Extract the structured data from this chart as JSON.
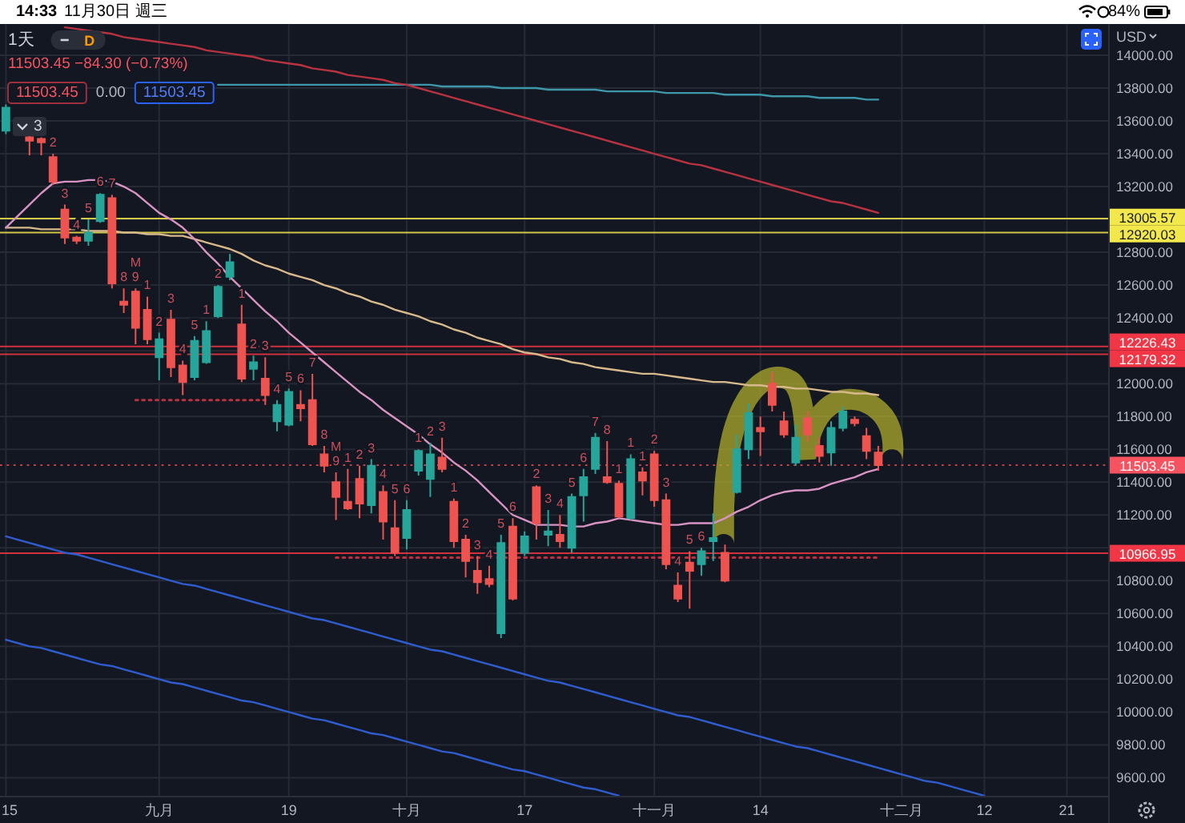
{
  "chart_data": {
    "type": "candlestick",
    "title": "1天",
    "subtitle": "11503.45 −84.30 (−0.73%)",
    "categories": [
      "15",
      null,
      null,
      null,
      null,
      null,
      null,
      null,
      null,
      null,
      null,
      null,
      null,
      "九月",
      null,
      null,
      null,
      null,
      null,
      null,
      null,
      null,
      null,
      null,
      "19",
      null,
      null,
      null,
      null,
      null,
      null,
      null,
      null,
      null,
      "十月",
      null,
      null,
      null,
      null,
      null,
      null,
      null,
      null,
      null,
      "17",
      null,
      null,
      null,
      null,
      null,
      null,
      null,
      null,
      null,
      null,
      "十一月",
      null,
      null,
      null,
      null,
      null,
      null,
      null,
      null,
      "14",
      null,
      null,
      null,
      null,
      null,
      null,
      null,
      null,
      null,
      null,
      null,
      "十二月",
      null,
      null,
      null,
      null,
      null,
      null,
      "12",
      null,
      null,
      null,
      null,
      null,
      null,
      "21",
      null,
      null,
      null
    ],
    "ohlc": [
      [
        13540,
        13700,
        13520,
        13680
      ],
      null,
      [
        13500,
        13510,
        13390,
        13480
      ],
      [
        13490,
        13500,
        13390,
        13470
      ],
      [
        13380,
        13400,
        13210,
        13230
      ],
      [
        13060,
        13090,
        12850,
        12890
      ],
      [
        12890,
        12900,
        12850,
        12870
      ],
      [
        12870,
        13000,
        12840,
        12920
      ],
      [
        12990,
        13160,
        12980,
        13150
      ],
      [
        13130,
        13150,
        12580,
        12610
      ],
      [
        12500,
        12580,
        12430,
        12480
      ],
      [
        12560,
        12580,
        12240,
        12340
      ],
      [
        12450,
        12530,
        12240,
        12270
      ],
      [
        12160,
        12310,
        12020,
        12270
      ],
      [
        12390,
        12450,
        12040,
        12100
      ],
      [
        12110,
        12140,
        11930,
        12010
      ],
      [
        12040,
        12290,
        12020,
        12260
      ],
      [
        12130,
        12380,
        12120,
        12320
      ],
      [
        12410,
        12600,
        12400,
        12590
      ],
      [
        12650,
        12790,
        12630,
        12740
      ],
      [
        12360,
        12480,
        12010,
        12030
      ],
      [
        12090,
        12170,
        12020,
        12130
      ],
      [
        12030,
        12160,
        11870,
        11930
      ],
      [
        11770,
        11900,
        11710,
        11870
      ],
      [
        11750,
        11970,
        11740,
        11950
      ],
      [
        11870,
        11960,
        11770,
        11850
      ],
      [
        11900,
        12060,
        11620,
        11630
      ],
      [
        11570,
        11620,
        11460,
        11500
      ],
      [
        11400,
        11460,
        11170,
        11310
      ],
      [
        11280,
        11480,
        11230,
        11240
      ],
      [
        11420,
        11500,
        11180,
        11270
      ],
      [
        11260,
        11540,
        11210,
        11500
      ],
      [
        11340,
        11380,
        11050,
        11160
      ],
      [
        11120,
        11290,
        10950,
        10970
      ],
      [
        11060,
        11290,
        10990,
        11230
      ],
      [
        11470,
        11600,
        11440,
        11590
      ],
      [
        11420,
        11640,
        11310,
        11570
      ],
      [
        11550,
        11670,
        11460,
        11480
      ],
      [
        11280,
        11300,
        11000,
        11040
      ],
      [
        11050,
        11080,
        10820,
        10920
      ],
      [
        10860,
        10950,
        10720,
        10790
      ],
      [
        10810,
        10890,
        10760,
        10780
      ],
      [
        10480,
        11080,
        10450,
        11030
      ],
      [
        11130,
        11180,
        10680,
        10690
      ],
      [
        10970,
        11100,
        10950,
        11070
      ],
      [
        11370,
        11380,
        11050,
        11150
      ],
      [
        11080,
        11230,
        11010,
        11100
      ],
      [
        11080,
        11200,
        11000,
        11040
      ],
      [
        11000,
        11330,
        10970,
        11310
      ],
      [
        11320,
        11480,
        11160,
        11430
      ],
      [
        11480,
        11700,
        11450,
        11670
      ],
      [
        11430,
        11650,
        11390,
        11400
      ],
      [
        11390,
        11410,
        11180,
        11190
      ],
      [
        11180,
        11570,
        11170,
        11540
      ],
      [
        11460,
        11490,
        11320,
        11410
      ],
      [
        11570,
        11590,
        11250,
        11290
      ],
      [
        11290,
        11330,
        10870,
        10900
      ],
      [
        10770,
        10850,
        10670,
        10690
      ],
      [
        10910,
        10980,
        10630,
        10860
      ],
      [
        10900,
        11000,
        10830,
        10980
      ],
      [
        11040,
        11210,
        10920,
        11060
      ],
      [
        10970,
        11020,
        10790,
        10800
      ],
      [
        11340,
        11690,
        11330,
        11600
      ],
      [
        11600,
        11880,
        11540,
        11820
      ],
      [
        11730,
        11800,
        11560,
        11710
      ],
      [
        12000,
        12070,
        11830,
        11870
      ],
      [
        11770,
        11830,
        11670,
        11690
      ],
      [
        11520,
        11750,
        11500,
        11670
      ],
      [
        11790,
        11830,
        11650,
        11690
      ],
      [
        11620,
        11670,
        11520,
        11560
      ],
      [
        11580,
        11770,
        11500,
        11730
      ],
      [
        11730,
        11860,
        11710,
        11830
      ],
      [
        11780,
        11800,
        11740,
        11760
      ],
      [
        11680,
        11730,
        11540,
        11590
      ],
      [
        11580,
        11620,
        11470,
        11503.45
      ],
      null,
      null,
      null,
      null,
      null,
      null,
      null,
      null,
      null,
      null,
      null,
      null,
      null,
      null,
      null,
      null,
      null,
      null,
      null
    ],
    "colors": [
      "#26a69a",
      null,
      "#ef5350",
      "#ef5350",
      "#ef5350",
      "#ef5350",
      "#ef5350",
      "#26a69a",
      "#26a69a",
      "#ef5350",
      "#ef5350",
      "#ef5350",
      "#ef5350",
      "#26a69a",
      "#ef5350",
      "#ef5350",
      "#26a69a",
      "#26a69a",
      "#26a69a",
      "#26a69a",
      "#ef5350",
      "#26a69a",
      "#ef5350",
      "#26a69a",
      "#26a69a",
      "#ef5350",
      "#ef5350",
      "#ef5350",
      "#ef5350",
      "#ef5350",
      "#ef5350",
      "#26a69a",
      "#ef5350",
      "#ef5350",
      "#26a69a",
      "#26a69a",
      "#26a69a",
      "#ef5350",
      "#ef5350",
      "#ef5350",
      "#ef5350",
      "#ef5350",
      "#26a69a",
      "#ef5350",
      "#26a69a",
      "#ef5350",
      "#26a69a",
      "#ef5350",
      "#26a69a",
      "#26a69a",
      "#26a69a",
      "#ef5350",
      "#ef5350",
      "#26a69a",
      "#ef5350",
      "#ef5350",
      "#ef5350",
      "#ef5350",
      "#ef5350",
      "#26a69a",
      "#26a69a",
      "#ef5350",
      "#26a69a",
      "#26a69a",
      "#ef5350",
      "#ef5350",
      "#ef5350",
      "#26a69a",
      "#ef5350",
      "#ef5350",
      "#26a69a",
      "#26a69a",
      "#ef5350",
      "#ef5350",
      "#ef5350",
      null,
      null,
      null,
      null,
      null,
      null,
      null,
      null,
      null,
      null,
      null,
      null,
      null,
      null,
      null,
      null,
      null,
      null,
      null
    ],
    "value_labels": [
      null,
      null,
      null,
      null,
      "2",
      "3",
      "4",
      "5",
      "6",
      "7",
      "8",
      "M\n9",
      "1",
      "2",
      "3",
      "4",
      "5",
      "1",
      "2",
      null,
      "1",
      "2",
      "3",
      "4",
      "5",
      "6",
      "7",
      "8",
      "M\n9",
      "1",
      "2",
      "3",
      "4",
      "5",
      "6",
      "1",
      "2",
      "3",
      "1",
      "2",
      "3",
      "4",
      "5",
      "6",
      null,
      "2",
      "3",
      "4",
      "5",
      "6",
      "7",
      "8",
      "1",
      "1",
      "1",
      "2",
      "3",
      "4",
      "5",
      "6",
      null,
      null,
      null,
      null,
      null,
      null,
      null,
      null,
      null,
      null,
      null,
      null,
      null,
      null,
      null,
      null,
      null,
      null,
      null,
      null,
      null,
      null,
      null,
      null,
      null,
      null,
      null,
      null,
      null,
      null,
      null,
      null,
      null,
      null
    ],
    "series": [
      {
        "type": "line",
        "color": "#2f5ccf",
        "values": [
          11070,
          11050,
          11030,
          11010,
          10990,
          10970,
          10960,
          10940,
          10920,
          10900,
          10880,
          10860,
          10840,
          10820,
          10800,
          10780,
          10770,
          10750,
          10730,
          10710,
          10690,
          10670,
          10650,
          10630,
          10610,
          10590,
          10570,
          10560,
          10540,
          10520,
          10500,
          10480,
          10460,
          10440,
          10420,
          10400,
          10380,
          10370,
          10350,
          10330,
          10310,
          10290,
          10270,
          10250,
          10230,
          10210,
          10190,
          10180,
          10160,
          10140,
          10120,
          10100,
          10080,
          10060,
          10040,
          10020,
          10000,
          9980,
          9970,
          9950,
          9930,
          9910,
          9890,
          9870,
          9850,
          9830,
          9810,
          9790,
          9780,
          9760,
          9740,
          9720,
          9700,
          9680,
          9660,
          9640,
          9620,
          9600,
          9580,
          9570,
          9550,
          9530,
          9510,
          9490,
          null,
          null,
          null,
          null,
          null,
          null,
          null,
          null,
          null,
          null
        ]
      },
      {
        "type": "line",
        "color": "#2f5ccf",
        "values": [
          10440,
          10420,
          10400,
          10390,
          10370,
          10350,
          10330,
          10310,
          10290,
          10280,
          10260,
          10240,
          10220,
          10200,
          10180,
          10170,
          10150,
          10130,
          10110,
          10090,
          10070,
          10060,
          10040,
          10020,
          10000,
          9980,
          9960,
          9950,
          9930,
          9910,
          9890,
          9870,
          9860,
          9840,
          9820,
          9800,
          9780,
          9760,
          9750,
          9730,
          9710,
          9690,
          9670,
          9650,
          9640,
          9620,
          9600,
          9580,
          9560,
          9540,
          9530,
          9510,
          9490,
          null,
          null,
          null,
          null,
          null,
          null,
          null,
          null,
          null,
          null,
          null,
          null,
          null,
          null,
          null,
          null,
          null,
          null,
          null,
          null,
          null,
          null,
          null,
          null,
          null,
          null,
          null,
          null,
          null,
          null,
          null,
          null,
          null,
          null,
          null,
          null,
          null,
          null,
          null,
          null,
          null
        ]
      },
      {
        "type": "line",
        "color": "#3d97a8",
        "values": [
          null,
          null,
          null,
          null,
          null,
          null,
          null,
          null,
          null,
          null,
          null,
          null,
          null,
          null,
          null,
          null,
          null,
          null,
          13820,
          13820,
          13820,
          13820,
          13820,
          13820,
          13820,
          13820,
          13820,
          13820,
          13820,
          13820,
          13820,
          13820,
          13820,
          13820,
          13820,
          13820,
          13820,
          13810,
          13810,
          13810,
          13810,
          13810,
          13800,
          13800,
          13800,
          13800,
          13790,
          13790,
          13790,
          13790,
          13790,
          13780,
          13780,
          13780,
          13780,
          13780,
          13770,
          13770,
          13770,
          13770,
          13770,
          13760,
          13760,
          13760,
          13760,
          13750,
          13750,
          13750,
          13750,
          13740,
          13740,
          13740,
          13740,
          13730,
          13730,
          null,
          null,
          null,
          null,
          null,
          null,
          null,
          null,
          null,
          null,
          null,
          null,
          null,
          null,
          null,
          null,
          null,
          null,
          null
        ]
      },
      {
        "type": "line",
        "color": "#b8333f",
        "values": [
          null,
          null,
          null,
          null,
          null,
          14170,
          14160,
          14150,
          14140,
          14130,
          14110,
          14100,
          14090,
          14080,
          14070,
          14060,
          14050,
          14030,
          14020,
          14010,
          14000,
          13990,
          13970,
          13960,
          13950,
          13940,
          13920,
          13910,
          13900,
          13880,
          13870,
          13860,
          13850,
          13830,
          13820,
          13800,
          13780,
          13760,
          13740,
          13720,
          13700,
          13680,
          13660,
          13640,
          13620,
          13600,
          13580,
          13560,
          13540,
          13520,
          13500,
          13480,
          13460,
          13440,
          13420,
          13400,
          13380,
          13360,
          13340,
          13330,
          13310,
          13290,
          13270,
          13250,
          13230,
          13210,
          13190,
          13170,
          13150,
          13130,
          13110,
          13100,
          13080,
          13060,
          13040,
          null,
          null,
          null,
          null,
          null,
          null,
          null,
          null,
          null,
          null,
          null,
          null,
          null,
          null,
          null,
          null,
          null,
          null,
          null
        ]
      },
      {
        "type": "line",
        "color": "#d8b98c",
        "values": [
          12950,
          12950,
          12950,
          12940,
          12940,
          12940,
          12940,
          12930,
          12930,
          12930,
          12920,
          12920,
          12910,
          12910,
          12900,
          12900,
          12880,
          12860,
          12840,
          12820,
          12790,
          12750,
          12720,
          12700,
          12670,
          12650,
          12630,
          12600,
          12580,
          12550,
          12530,
          12500,
          12480,
          12450,
          12430,
          12410,
          12380,
          12360,
          12330,
          12310,
          12280,
          12260,
          12240,
          12210,
          12190,
          12180,
          12160,
          12150,
          12130,
          12120,
          12100,
          12090,
          12080,
          12070,
          12060,
          12060,
          12050,
          12040,
          12030,
          12020,
          12010,
          12010,
          12000,
          11990,
          11990,
          11980,
          11980,
          11970,
          11970,
          11960,
          11950,
          11950,
          11940,
          11940,
          11930,
          null,
          null,
          null,
          null,
          null,
          null,
          null,
          null,
          null,
          null,
          null,
          null,
          null,
          null,
          null,
          null,
          null,
          null,
          null
        ]
      },
      {
        "type": "line",
        "color": "#d993c2",
        "values": [
          12950,
          13020,
          13090,
          13160,
          13220,
          13230,
          13230,
          13240,
          13240,
          13230,
          13200,
          13160,
          13100,
          13040,
          13000,
          12950,
          12880,
          12800,
          12730,
          12650,
          12580,
          12510,
          12440,
          12380,
          12310,
          12250,
          12190,
          12130,
          12070,
          12010,
          11950,
          11900,
          11840,
          11790,
          11740,
          11690,
          11630,
          11580,
          11520,
          11470,
          11410,
          11340,
          11270,
          11200,
          11170,
          11140,
          11140,
          11140,
          11130,
          11130,
          11150,
          11160,
          11180,
          11170,
          11160,
          11150,
          11140,
          11140,
          11150,
          11150,
          11150,
          11180,
          11220,
          11250,
          11290,
          11320,
          11340,
          11350,
          11350,
          11360,
          11390,
          11410,
          11430,
          11460,
          11480,
          null,
          null,
          null,
          null,
          null,
          null,
          null,
          null,
          null,
          null,
          null,
          null,
          null,
          null,
          null,
          null,
          null,
          null,
          null
        ]
      },
      {
        "type": "line",
        "color": "#b8333f",
        "line_style": "dotted",
        "values": [
          null,
          null,
          null,
          null,
          null,
          null,
          null,
          null,
          null,
          null,
          null,
          11900,
          11900,
          11900,
          11900,
          11900,
          11900,
          11900,
          11900,
          11900,
          11900,
          11900,
          11900,
          null,
          null,
          null,
          null,
          null,
          null,
          null,
          null,
          null,
          null,
          null,
          null,
          null,
          null,
          null,
          null,
          null,
          null,
          null,
          null,
          null,
          null,
          null,
          null,
          null,
          null,
          null,
          null,
          null,
          null,
          null,
          null,
          null,
          null,
          null,
          null,
          null,
          null,
          null,
          null,
          null,
          null,
          null,
          null,
          null,
          null,
          null,
          null,
          null,
          null,
          null,
          null,
          null,
          null,
          null,
          null,
          null,
          null,
          null,
          null,
          null,
          null,
          null,
          null,
          null,
          null,
          null,
          null,
          null,
          null,
          null
        ]
      },
      {
        "type": "line",
        "color": "#b8333f",
        "line_style": "dotted",
        "values": [
          null,
          null,
          null,
          null,
          null,
          null,
          null,
          null,
          null,
          null,
          null,
          null,
          null,
          null,
          null,
          null,
          null,
          null,
          null,
          null,
          null,
          null,
          null,
          null,
          null,
          null,
          null,
          null,
          10940,
          10940,
          10940,
          10940,
          10940,
          10940,
          10940,
          10940,
          10940,
          10940,
          10940,
          10940,
          10940,
          10940,
          10940,
          10940,
          10940,
          10940,
          10940,
          10940,
          10940,
          10940,
          10940,
          10940,
          10940,
          10940,
          10940,
          10940,
          10940,
          10940,
          10940,
          10940,
          10940,
          10940,
          10940,
          10940,
          10940,
          10940,
          10940,
          10940,
          10940,
          10940,
          10940,
          10940,
          10940,
          10940,
          10940,
          null,
          null,
          null,
          null,
          null,
          null,
          null,
          null,
          null,
          null,
          null,
          null,
          null,
          null,
          null,
          null,
          null,
          null,
          null
        ]
      }
    ],
    "ylim": [
      9490,
      14190
    ],
    "yticks": [
      {
        "value": 9600,
        "label": "9600.00"
      },
      {
        "value": 9800,
        "label": "9800.00"
      },
      {
        "value": 10000,
        "label": "10000.00"
      },
      {
        "value": 10200,
        "label": "10200.00"
      },
      {
        "value": 10400,
        "label": "10400.00"
      },
      {
        "value": 10600,
        "label": "10600.00"
      },
      {
        "value": 10800,
        "label": "10800.00"
      },
      {
        "value": 11000,
        "label": null
      },
      {
        "value": 11200,
        "label": "11200.00"
      },
      {
        "value": 11400,
        "label": "11400.00"
      },
      {
        "value": 11600,
        "label": "11600.00"
      },
      {
        "value": 11800,
        "label": "11800.00"
      },
      {
        "value": 12000,
        "label": "12000.00"
      },
      {
        "value": 12200,
        "label": null
      },
      {
        "value": 12400,
        "label": "12400.00"
      },
      {
        "value": 12600,
        "label": "12600.00"
      },
      {
        "value": 12800,
        "label": "12800.00"
      },
      {
        "value": 13000,
        "label": null
      },
      {
        "value": 13200,
        "label": "13200.00"
      },
      {
        "value": 13400,
        "label": "13400.00"
      },
      {
        "value": 13600,
        "label": "13600.00"
      },
      {
        "value": 13800,
        "label": "13800.00"
      },
      {
        "value": 14000,
        "label": "14000.00"
      }
    ],
    "grid": true,
    "ref_lines": [
      {
        "axis": "y",
        "value": 13005.57,
        "label": "13005.57",
        "color": "#f2e84b"
      },
      {
        "axis": "y",
        "value": 12920.03,
        "label": "12920.03",
        "color": "#f2e84b"
      },
      {
        "axis": "y",
        "value": 12226.43,
        "label": "12226.43",
        "color": "#f23645"
      },
      {
        "axis": "y",
        "value": 12179.32,
        "label": "12179.32",
        "color": "#f23645"
      },
      {
        "axis": "y",
        "value": 10966.95,
        "label": "10966.95",
        "color": "#f23645"
      },
      {
        "axis": "y",
        "value": 11503.45,
        "label": "11503.45",
        "color": "#f7525f",
        "line_style": "dotted"
      }
    ],
    "annotations": [
      "14:33",
      "11月30日 週三",
      "84%",
      "11503.45",
      "0.00",
      "11503.45",
      "3",
      "USD",
      "D"
    ]
  }
}
